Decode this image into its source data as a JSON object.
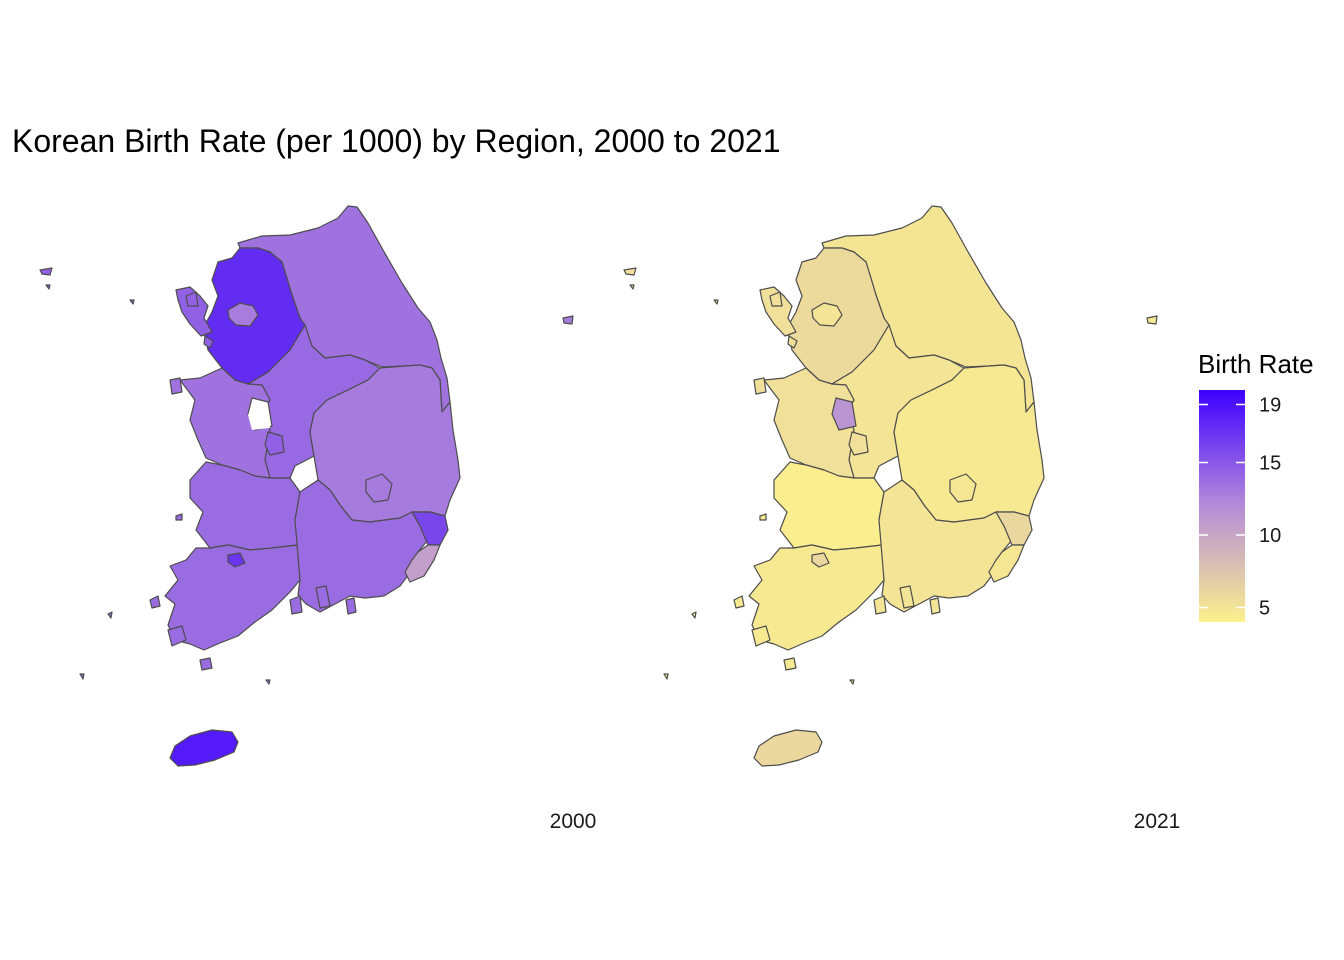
{
  "title": "Korean Birth Rate (per 1000) by Region, 2000 to 2021",
  "legend": {
    "title": "Birth Rate",
    "ticks": [
      "19",
      "15",
      "10",
      "5"
    ],
    "tick_values": [
      19,
      15,
      10,
      5
    ],
    "range": [
      4,
      20
    ],
    "color_low": "#fcf08c",
    "color_mid": "#b58cd9",
    "color_high": "#3d00ff"
  },
  "facets": [
    {
      "label": "2000",
      "regions": [
        {
          "name": "Gangwon",
          "value": 13.5
        },
        {
          "name": "Gyeonggi",
          "value": 17.5
        },
        {
          "name": "Seoul",
          "value": 12.9
        },
        {
          "name": "Incheon",
          "value": 14.5
        },
        {
          "name": "Chungbuk",
          "value": 14.0
        },
        {
          "name": "Chungnam",
          "value": 13.5
        },
        {
          "name": "Daejeon",
          "value": 14.5
        },
        {
          "name": "Gyeongbuk",
          "value": 13.0
        },
        {
          "name": "Daegu",
          "value": 13.0
        },
        {
          "name": "Jeonbuk",
          "value": 13.8
        },
        {
          "name": "Gwangju",
          "value": 17.0
        },
        {
          "name": "Jeonnam",
          "value": 13.8
        },
        {
          "name": "Gyeongnam",
          "value": 13.8
        },
        {
          "name": "Ulsan",
          "value": 16.0
        },
        {
          "name": "Busan",
          "value": 10.5
        },
        {
          "name": "Jeju",
          "value": 18.5
        }
      ]
    },
    {
      "label": "2021",
      "regions": [
        {
          "name": "Gangwon",
          "value": 4.9
        },
        {
          "name": "Gyeonggi",
          "value": 5.8
        },
        {
          "name": "Seoul",
          "value": 5.0
        },
        {
          "name": "Incheon",
          "value": 5.3
        },
        {
          "name": "Chungbuk",
          "value": 5.0
        },
        {
          "name": "Chungnam",
          "value": 5.3
        },
        {
          "name": "Sejong",
          "value": 11.3
        },
        {
          "name": "Daejeon",
          "value": 5.3
        },
        {
          "name": "Gyeongbuk",
          "value": 4.6
        },
        {
          "name": "Daegu",
          "value": 4.8
        },
        {
          "name": "Jeonbuk",
          "value": 4.2
        },
        {
          "name": "Gwangju",
          "value": 6.0
        },
        {
          "name": "Jeonnam",
          "value": 4.6
        },
        {
          "name": "Gyeongnam",
          "value": 5.0
        },
        {
          "name": "Ulsan",
          "value": 6.0
        },
        {
          "name": "Busan",
          "value": 4.8
        },
        {
          "name": "Jeju",
          "value": 5.9
        }
      ]
    }
  ]
}
